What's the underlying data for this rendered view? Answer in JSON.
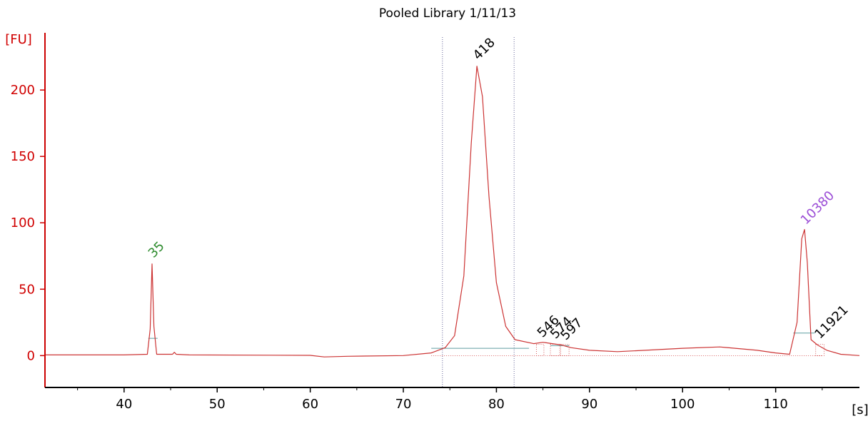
{
  "chart_data": {
    "type": "line",
    "title": "Pooled Library 1/11/13",
    "ylabel": "[FU]",
    "xlabel": "[s]",
    "xlim": [
      31.5,
      119
    ],
    "ylim": [
      -24,
      242
    ],
    "x_ticks": [
      40,
      50,
      60,
      70,
      80,
      90,
      100,
      110
    ],
    "y_ticks": [
      0,
      50,
      100,
      150,
      200
    ],
    "grid": false,
    "colors": {
      "trace": "#cc3333",
      "axis": "#cc0000",
      "baseline": "#5f9ea0",
      "marker_green": "#2e8b2e",
      "marker_purple": "#9b4dd6",
      "label": "#000000"
    },
    "series": [
      {
        "values": [
          [
            31.5,
            0.5
          ],
          [
            40,
            0.5
          ],
          [
            42.5,
            1
          ],
          [
            42.8,
            20
          ],
          [
            43.0,
            69
          ],
          [
            43.2,
            22
          ],
          [
            43.5,
            1
          ],
          [
            45.2,
            1
          ],
          [
            45.4,
            2.5
          ],
          [
            45.6,
            1
          ],
          [
            47,
            0.5
          ],
          [
            60,
            0.2
          ],
          [
            61.5,
            -1
          ],
          [
            64,
            -0.5
          ],
          [
            70,
            0
          ],
          [
            73,
            2
          ],
          [
            74.5,
            6
          ],
          [
            75.5,
            15
          ],
          [
            76.5,
            60
          ],
          [
            77.3,
            160
          ],
          [
            77.9,
            218
          ],
          [
            78.5,
            195
          ],
          [
            79.2,
            120
          ],
          [
            80,
            55
          ],
          [
            81,
            22
          ],
          [
            82,
            12
          ],
          [
            84,
            9
          ],
          [
            85,
            10
          ],
          [
            86,
            9
          ],
          [
            87,
            8
          ],
          [
            88,
            6
          ],
          [
            90,
            4
          ],
          [
            93,
            3
          ],
          [
            96,
            4
          ],
          [
            100,
            5.5
          ],
          [
            104,
            6.5
          ],
          [
            108,
            4
          ],
          [
            110,
            2
          ],
          [
            111.5,
            1
          ],
          [
            112.3,
            25
          ],
          [
            112.8,
            88
          ],
          [
            113.1,
            95
          ],
          [
            113.4,
            70
          ],
          [
            113.8,
            12
          ],
          [
            114.5,
            8
          ],
          [
            115.5,
            4
          ],
          [
            117,
            1
          ],
          [
            119,
            0
          ]
        ]
      }
    ],
    "peaks": [
      {
        "label": "35",
        "x": 43.0,
        "y": 70,
        "color": "green"
      },
      {
        "label": "418",
        "x": 77.9,
        "y": 219,
        "color": "black"
      },
      {
        "label": "546",
        "x": 84.8,
        "y": 10,
        "color": "black"
      },
      {
        "label": "574",
        "x": 86.2,
        "y": 9,
        "color": "black"
      },
      {
        "label": "597",
        "x": 87.3,
        "y": 8,
        "color": "black"
      },
      {
        "label": "10380",
        "x": 113.1,
        "y": 95,
        "color": "purple"
      },
      {
        "label": "11921",
        "x": 114.6,
        "y": 9,
        "color": "black"
      }
    ],
    "region_lines": [
      74.2,
      81.9
    ]
  }
}
